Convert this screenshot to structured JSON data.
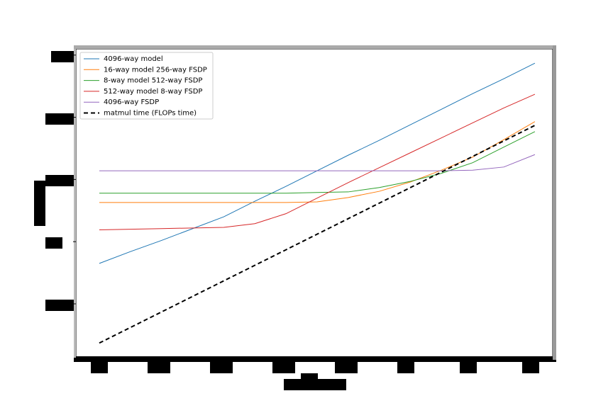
{
  "chart_data": {
    "type": "line",
    "x": [
      0,
      0.5,
      1,
      1.5,
      2,
      2.5,
      3,
      3.5,
      4,
      4.5,
      5,
      5.5,
      6,
      6.5,
      7
    ],
    "series": [
      {
        "name": "4096-way model",
        "color": "#1f77b4",
        "values": [
          1.65,
          1.84,
          2.02,
          2.21,
          2.4,
          2.65,
          2.89,
          3.14,
          3.39,
          3.63,
          3.88,
          4.13,
          4.38,
          4.62,
          4.87
        ]
      },
      {
        "name": "16-way model 256-way FSDP",
        "color": "#ff7f0e",
        "values": [
          2.63,
          2.63,
          2.63,
          2.63,
          2.63,
          2.63,
          2.63,
          2.64,
          2.71,
          2.81,
          2.96,
          3.15,
          3.36,
          3.64,
          3.93
        ]
      },
      {
        "name": "8-way model 512-way FSDP",
        "color": "#2ca02c",
        "values": [
          2.78,
          2.78,
          2.78,
          2.78,
          2.78,
          2.78,
          2.78,
          2.79,
          2.8,
          2.87,
          2.97,
          3.1,
          3.27,
          3.52,
          3.77
        ]
      },
      {
        "name": "512-way model 8-way FSDP",
        "color": "#d62728",
        "values": [
          2.19,
          2.2,
          2.21,
          2.22,
          2.23,
          2.29,
          2.45,
          2.7,
          2.95,
          3.19,
          3.43,
          3.67,
          3.91,
          4.15,
          4.37
        ]
      },
      {
        "name": "4096-way FSDP",
        "color": "#9467bd",
        "values": [
          3.14,
          3.14,
          3.14,
          3.14,
          3.14,
          3.14,
          3.14,
          3.14,
          3.14,
          3.14,
          3.14,
          3.14,
          3.15,
          3.2,
          3.4
        ]
      },
      {
        "name": "matmul time (FLOPs time)",
        "color": "#000000",
        "linestyle": "dashed",
        "values": [
          0.37,
          0.62,
          0.87,
          1.12,
          1.37,
          1.62,
          1.87,
          2.12,
          2.37,
          2.62,
          2.87,
          3.12,
          3.37,
          3.62,
          3.87
        ]
      }
    ],
    "xlim": [
      -0.376,
      7.286
    ],
    "ylim": [
      0.134,
      5.1
    ],
    "xticks": [
      0,
      1,
      2,
      3,
      4,
      5,
      6,
      7
    ],
    "yticks": [
      1,
      2,
      3,
      4,
      5
    ],
    "legend": "upper left"
  }
}
